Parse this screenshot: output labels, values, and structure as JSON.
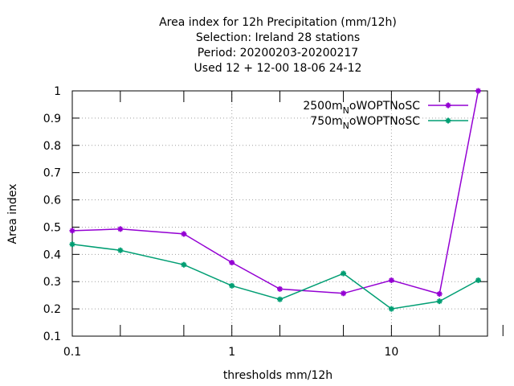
{
  "chart_data": {
    "type": "line",
    "title_lines": [
      "Area index  for 12h Precipitation (mm/12h)",
      "Selection: Ireland      28 stations",
      "Period: 20200203-20200217",
      "Used  12 + 12-00 18-06 24-12"
    ],
    "xlabel": "thresholds mm/12h",
    "ylabel": "Area index",
    "x_scale": "log",
    "xlim": [
      0.1,
      40
    ],
    "ylim": [
      0.1,
      1.0
    ],
    "x_ticks": [
      {
        "value": 0.1,
        "label": "0.1"
      },
      {
        "value": 1,
        "label": "1"
      },
      {
        "value": 10,
        "label": "10"
      }
    ],
    "y_ticks": [
      {
        "value": 0.1,
        "label": "0.1"
      },
      {
        "value": 0.2,
        "label": "0.2"
      },
      {
        "value": 0.3,
        "label": "0.3"
      },
      {
        "value": 0.4,
        "label": "0.4"
      },
      {
        "value": 0.5,
        "label": "0.5"
      },
      {
        "value": 0.6,
        "label": "0.6"
      },
      {
        "value": 0.7,
        "label": "0.7"
      },
      {
        "value": 0.8,
        "label": "0.8"
      },
      {
        "value": 0.9,
        "label": "0.9"
      },
      {
        "value": 1,
        "label": "1"
      }
    ],
    "grid": true,
    "legend_position": "top-right",
    "x": [
      0.1,
      0.2,
      0.5,
      1,
      2,
      5,
      10,
      20,
      35
    ],
    "series": [
      {
        "name": "2500m",
        "name_sub": "N",
        "name_rest": "oWOPTNoSC",
        "color": "#9400d3",
        "values": [
          0.487,
          0.493,
          0.475,
          0.37,
          0.273,
          0.257,
          0.305,
          0.255,
          1.0
        ]
      },
      {
        "name": "750m",
        "name_sub": "N",
        "name_rest": "oWOPTNoSC",
        "color": "#009e73",
        "values": [
          0.437,
          0.415,
          0.362,
          0.285,
          0.235,
          0.33,
          0.2,
          0.228,
          0.305
        ]
      }
    ]
  }
}
